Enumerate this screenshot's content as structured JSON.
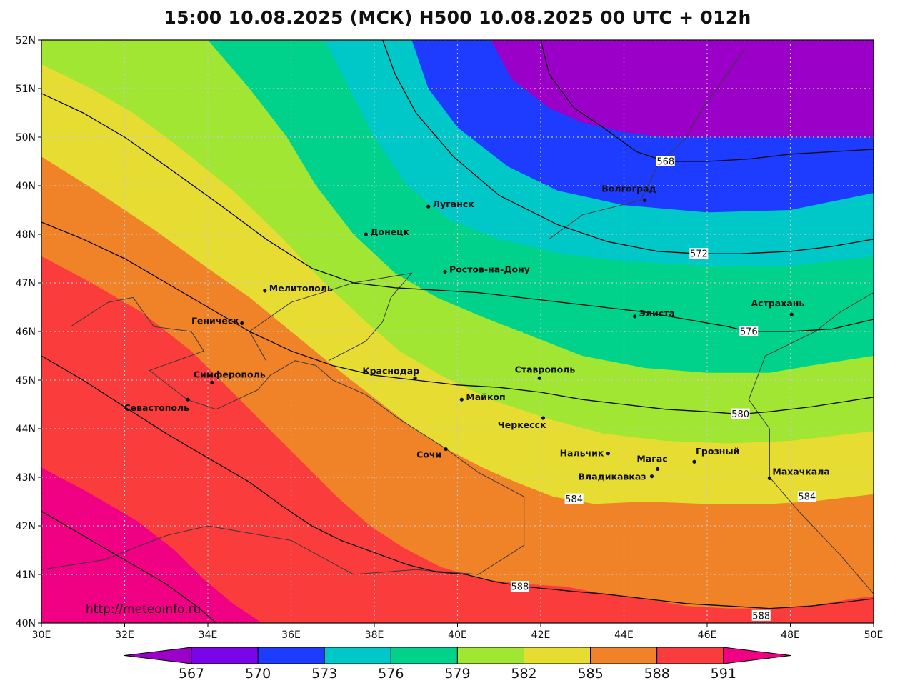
{
  "title": "15:00 10.08.2025 (МСК) H500  10.08.2025 00 UTC + 012h",
  "credit": "http://meteoinfo.ru",
  "map": {
    "lon_range": [
      30,
      50
    ],
    "lat_range": [
      40,
      52
    ],
    "grid": true,
    "x_ticks": [
      "30E",
      "32E",
      "34E",
      "36E",
      "38E",
      "40E",
      "42E",
      "44E",
      "46E",
      "48E",
      "50E"
    ],
    "y_ticks": [
      "40N",
      "41N",
      "42N",
      "43N",
      "44N",
      "45N",
      "46N",
      "47N",
      "48N",
      "49N",
      "50N",
      "51N",
      "52N"
    ]
  },
  "colors": {
    "background": "#ffffff",
    "lt567": "#9b00c8",
    "b567_570": "#7a05e8",
    "b570_573": "#1e3cff",
    "b573_576": "#00c8c8",
    "b576_579": "#00d28c",
    "b579_582": "#a0e632",
    "b582_585": "#e6dc32",
    "b585_588": "#f08228",
    "b588_591": "#fa3c3c",
    "gt591": "#f00082"
  },
  "bands": [
    {
      "name": "lt567",
      "boundary_latlon": [
        [
          52.0,
          40.8
        ],
        [
          51.2,
          41.3
        ],
        [
          50.6,
          42.2
        ],
        [
          50.3,
          43.0
        ],
        [
          50.1,
          44.0
        ],
        [
          50.0,
          45.0
        ]
      ]
    },
    {
      "name": "b567_570",
      "boundary_latlon": [
        [
          52.0,
          44.2
        ],
        [
          51.5,
          44.6
        ],
        [
          51.0,
          45.6
        ],
        [
          50.6,
          47.5
        ],
        [
          50.45,
          50.0
        ]
      ]
    },
    {
      "name": "b570_573",
      "boundary_latlon": [
        [
          52.0,
          38.9
        ],
        [
          51.0,
          39.3
        ],
        [
          50.2,
          40.0
        ],
        [
          49.4,
          41.2
        ],
        [
          48.9,
          42.4
        ],
        [
          48.6,
          44.0
        ],
        [
          48.45,
          46.0
        ],
        [
          48.5,
          48.0
        ],
        [
          48.85,
          50.0
        ]
      ]
    },
    {
      "name": "b573_576",
      "boundary_latlon": [
        [
          52.0,
          36.8
        ],
        [
          51.0,
          37.4
        ],
        [
          50.0,
          38.0
        ],
        [
          49.0,
          38.8
        ],
        [
          48.3,
          39.8
        ],
        [
          47.9,
          41.0
        ],
        [
          47.6,
          42.5
        ],
        [
          47.45,
          44.0
        ],
        [
          47.35,
          46.0
        ],
        [
          47.35,
          48.0
        ],
        [
          47.55,
          50.0
        ]
      ]
    },
    {
      "name": "b576_579",
      "boundary_latlon": [
        [
          52.0,
          34.0
        ],
        [
          51.0,
          35.0
        ],
        [
          50.0,
          35.9
        ],
        [
          49.0,
          36.6
        ],
        [
          48.0,
          37.5
        ],
        [
          47.2,
          38.5
        ],
        [
          46.7,
          39.5
        ],
        [
          46.3,
          40.6
        ],
        [
          45.9,
          41.8
        ],
        [
          45.5,
          43.0
        ],
        [
          45.25,
          44.5
        ],
        [
          45.15,
          46.0
        ],
        [
          45.15,
          47.5
        ],
        [
          45.3,
          48.5
        ],
        [
          45.5,
          50.0
        ]
      ]
    },
    {
      "name": "b579_582",
      "boundary_latlon": [
        [
          51.5,
          30.0
        ],
        [
          51.0,
          31.2
        ],
        [
          50.5,
          32.2
        ],
        [
          49.8,
          33.3
        ],
        [
          48.9,
          34.6
        ],
        [
          48.0,
          35.7
        ],
        [
          47.0,
          36.8
        ],
        [
          46.2,
          37.8
        ],
        [
          45.6,
          38.6
        ],
        [
          45.1,
          39.6
        ],
        [
          44.6,
          40.8
        ],
        [
          44.2,
          42.2
        ],
        [
          43.9,
          43.5
        ],
        [
          43.75,
          45.0
        ],
        [
          43.7,
          46.5
        ],
        [
          43.75,
          48.0
        ],
        [
          43.95,
          50.0
        ]
      ]
    },
    {
      "name": "b582_585",
      "boundary_latlon": [
        [
          49.6,
          30.0
        ],
        [
          48.9,
          31.3
        ],
        [
          48.1,
          32.7
        ],
        [
          47.3,
          34.0
        ],
        [
          46.7,
          35.0
        ],
        [
          46.0,
          36.0
        ],
        [
          45.3,
          37.0
        ],
        [
          44.7,
          37.9
        ],
        [
          44.1,
          38.8
        ],
        [
          43.6,
          39.7
        ],
        [
          43.2,
          40.6
        ],
        [
          42.9,
          41.4
        ],
        [
          42.6,
          42.3
        ],
        [
          42.45,
          43.3
        ],
        [
          42.5,
          44.5
        ],
        [
          42.45,
          46.0
        ],
        [
          42.45,
          47.5
        ],
        [
          42.5,
          48.5
        ],
        [
          42.65,
          50.0
        ]
      ]
    },
    {
      "name": "b585_588",
      "boundary_latlon": [
        [
          47.55,
          30.0
        ],
        [
          47.0,
          31.2
        ],
        [
          46.4,
          32.4
        ],
        [
          45.6,
          33.6
        ],
        [
          45.0,
          34.3
        ],
        [
          44.4,
          35.0
        ],
        [
          43.8,
          35.7
        ],
        [
          43.2,
          36.4
        ],
        [
          42.6,
          37.1
        ],
        [
          42.0,
          37.9
        ],
        [
          41.55,
          38.7
        ],
        [
          41.15,
          39.6
        ],
        [
          40.9,
          40.6
        ],
        [
          40.8,
          41.6
        ],
        [
          40.75,
          42.6
        ],
        [
          40.6,
          43.5
        ],
        [
          40.5,
          44.5
        ],
        [
          40.35,
          45.5
        ],
        [
          40.3,
          46.5
        ],
        [
          40.3,
          47.5
        ],
        [
          40.35,
          48.5
        ],
        [
          40.5,
          49.5
        ],
        [
          40.55,
          50.0
        ]
      ]
    },
    {
      "name": "b588_591",
      "boundary_latlon": [
        [
          43.2,
          30.0
        ],
        [
          42.7,
          31.1
        ],
        [
          42.1,
          32.3
        ],
        [
          41.5,
          33.2
        ],
        [
          40.9,
          33.9
        ],
        [
          40.4,
          34.6
        ],
        [
          40.0,
          35.3
        ]
      ]
    }
  ],
  "contours": [
    {
      "value": "568",
      "label": "568",
      "label_latlon": [
        49.5,
        45.0
      ],
      "path_latlon": [
        [
          52.0,
          42.0
        ],
        [
          51.3,
          42.2
        ],
        [
          50.6,
          42.8
        ],
        [
          50.2,
          43.5
        ],
        [
          49.7,
          44.3
        ],
        [
          49.5,
          45.0
        ],
        [
          49.5,
          46.0
        ],
        [
          49.55,
          47.0
        ],
        [
          49.65,
          48.0
        ],
        [
          49.75,
          50.0
        ]
      ]
    },
    {
      "value": "572",
      "label": "572",
      "label_latlon": [
        47.6,
        45.8
      ],
      "path_latlon": [
        [
          52.0,
          38.2
        ],
        [
          51.3,
          38.5
        ],
        [
          50.5,
          39.0
        ],
        [
          49.6,
          39.9
        ],
        [
          48.8,
          41.0
        ],
        [
          48.2,
          42.4
        ],
        [
          47.85,
          43.6
        ],
        [
          47.65,
          44.8
        ],
        [
          47.6,
          45.8
        ],
        [
          47.6,
          46.8
        ],
        [
          47.65,
          48.0
        ],
        [
          47.75,
          49.0
        ],
        [
          47.9,
          50.0
        ]
      ]
    },
    {
      "value": "576",
      "label": "576",
      "label_latlon": [
        46.0,
        47.0
      ],
      "path_latlon": [
        [
          50.9,
          30.0
        ],
        [
          50.5,
          31.0
        ],
        [
          50.0,
          32.0
        ],
        [
          49.4,
          33.0
        ],
        [
          48.6,
          34.3
        ],
        [
          47.9,
          35.4
        ],
        [
          47.3,
          36.5
        ],
        [
          47.0,
          37.5
        ],
        [
          46.9,
          38.5
        ],
        [
          46.85,
          39.5
        ],
        [
          46.8,
          40.5
        ],
        [
          46.7,
          41.5
        ],
        [
          46.6,
          42.5
        ],
        [
          46.5,
          43.5
        ],
        [
          46.4,
          44.5
        ],
        [
          46.25,
          45.5
        ],
        [
          46.1,
          46.5
        ],
        [
          46.0,
          47.0
        ],
        [
          46.0,
          48.0
        ],
        [
          46.05,
          49.0
        ],
        [
          46.25,
          50.0
        ]
      ]
    },
    {
      "value": "580",
      "label": "580",
      "label_latlon": [
        44.3,
        46.8
      ],
      "path_latlon": [
        [
          48.25,
          30.0
        ],
        [
          47.9,
          31.0
        ],
        [
          47.5,
          32.0
        ],
        [
          47.0,
          33.0
        ],
        [
          46.5,
          34.0
        ],
        [
          46.0,
          35.0
        ],
        [
          45.6,
          36.0
        ],
        [
          45.3,
          37.0
        ],
        [
          45.1,
          38.0
        ],
        [
          45.0,
          39.0
        ],
        [
          44.9,
          40.0
        ],
        [
          44.85,
          41.0
        ],
        [
          44.75,
          42.0
        ],
        [
          44.6,
          43.0
        ],
        [
          44.5,
          44.0
        ],
        [
          44.4,
          45.0
        ],
        [
          44.35,
          46.0
        ],
        [
          44.3,
          46.8
        ],
        [
          44.35,
          47.5
        ],
        [
          44.45,
          48.5
        ],
        [
          44.65,
          50.0
        ]
      ]
    },
    {
      "value": "584",
      "label": "584",
      "label_latlon": [
        42.55,
        42.8
      ],
      "label2": "584",
      "label2_latlon": [
        42.6,
        48.4
      ],
      "path_latlon": [
        [
          45.5,
          30.0
        ],
        [
          45.0,
          31.0
        ],
        [
          44.45,
          32.0
        ],
        [
          43.9,
          33.0
        ],
        [
          43.4,
          34.0
        ],
        [
          42.9,
          35.0
        ],
        [
          42.4,
          35.8
        ],
        [
          42.0,
          36.5
        ],
        [
          41.7,
          37.2
        ],
        [
          41.45,
          38.0
        ],
        [
          41.2,
          38.8
        ],
        [
          41.05,
          39.5
        ],
        [
          41.0,
          40.2
        ],
        [
          40.85,
          40.9
        ],
        [
          40.75,
          41.6
        ],
        [
          40.7,
          42.2
        ],
        [
          40.65,
          42.8
        ],
        [
          40.6,
          43.5
        ],
        [
          40.5,
          44.5
        ],
        [
          40.4,
          45.5
        ],
        [
          40.35,
          46.5
        ],
        [
          40.3,
          47.5
        ],
        [
          40.35,
          48.5
        ],
        [
          40.45,
          49.5
        ],
        [
          40.5,
          50.0
        ]
      ]
    },
    {
      "value": "588",
      "label": "588",
      "label_latlon": [
        40.75,
        41.5
      ],
      "label2": "588",
      "label2_latlon": [
        40.15,
        47.3
      ],
      "path_latlon": [
        [
          42.3,
          30.0
        ],
        [
          41.8,
          31.0
        ],
        [
          41.3,
          32.0
        ],
        [
          40.8,
          33.0
        ],
        [
          40.3,
          33.8
        ],
        [
          40.0,
          34.2
        ]
      ]
    }
  ],
  "cities": [
    {
      "name": "Волгоград",
      "latlon": [
        48.7,
        44.5
      ]
    },
    {
      "name": "Луганск",
      "latlon": [
        48.57,
        39.3
      ]
    },
    {
      "name": "Донецк",
      "latlon": [
        48.0,
        37.8
      ]
    },
    {
      "name": "Ростов-на-Дону",
      "latlon": [
        47.23,
        39.7
      ]
    },
    {
      "name": "Мелитополь",
      "latlon": [
        46.84,
        35.37
      ]
    },
    {
      "name": "Геническ",
      "latlon": [
        46.17,
        34.82
      ]
    },
    {
      "name": "Элиста",
      "latlon": [
        46.31,
        44.26
      ]
    },
    {
      "name": "Астрахань",
      "latlon": [
        46.35,
        48.03
      ]
    },
    {
      "name": "Симферополь",
      "latlon": [
        44.95,
        34.1
      ]
    },
    {
      "name": "Севастополь",
      "latlon": [
        44.6,
        33.52
      ]
    },
    {
      "name": "Краснодар",
      "latlon": [
        45.04,
        38.98
      ]
    },
    {
      "name": "Ставрополь",
      "latlon": [
        45.04,
        41.97
      ]
    },
    {
      "name": "Майкоп",
      "latlon": [
        44.6,
        40.1
      ]
    },
    {
      "name": "Черкесск",
      "latlon": [
        44.22,
        42.06
      ]
    },
    {
      "name": "Сочи",
      "latlon": [
        43.58,
        39.72
      ]
    },
    {
      "name": "Нальчик",
      "latlon": [
        43.49,
        43.62
      ]
    },
    {
      "name": "Магас",
      "latlon": [
        43.17,
        44.81
      ]
    },
    {
      "name": "Грозный",
      "latlon": [
        43.32,
        45.69
      ]
    },
    {
      "name": "Владикавказ",
      "latlon": [
        43.02,
        44.67
      ]
    },
    {
      "name": "Махачкала",
      "latlon": [
        42.98,
        47.5
      ]
    }
  ],
  "coastline": {
    "black_sea_azov": [
      [
        46.1,
        30.7
      ],
      [
        46.6,
        31.6
      ],
      [
        46.7,
        32.2
      ],
      [
        46.1,
        32.7
      ],
      [
        46.0,
        33.6
      ],
      [
        45.6,
        33.9
      ],
      [
        45.2,
        32.6
      ],
      [
        44.6,
        33.5
      ],
      [
        44.4,
        34.2
      ],
      [
        44.8,
        35.2
      ],
      [
        45.1,
        35.5
      ],
      [
        45.4,
        36.1
      ],
      [
        45.3,
        36.6
      ],
      [
        45.0,
        37.0
      ],
      [
        44.7,
        37.8
      ],
      [
        44.2,
        38.6
      ],
      [
        43.6,
        39.7
      ],
      [
        43.1,
        40.5
      ],
      [
        42.6,
        41.6
      ],
      [
        41.6,
        41.6
      ],
      [
        41.0,
        40.5
      ],
      [
        41.1,
        39.0
      ],
      [
        41.0,
        37.5
      ],
      [
        41.7,
        36.0
      ],
      [
        42.0,
        34.0
      ],
      [
        41.8,
        33.0
      ],
      [
        41.3,
        31.5
      ],
      [
        41.1,
        30.0
      ]
    ],
    "azov_north": [
      [
        45.4,
        35.4
      ],
      [
        46.0,
        35.0
      ],
      [
        46.6,
        36.0
      ],
      [
        47.0,
        37.5
      ],
      [
        47.2,
        38.9
      ],
      [
        46.7,
        38.4
      ],
      [
        46.2,
        38.2
      ],
      [
        45.8,
        37.8
      ],
      [
        45.4,
        36.9
      ]
    ],
    "caspian_west": [
      [
        46.8,
        50.0
      ],
      [
        46.4,
        49.2
      ],
      [
        46.0,
        48.6
      ],
      [
        45.5,
        47.4
      ],
      [
        44.6,
        47.0
      ],
      [
        44.0,
        47.5
      ],
      [
        43.0,
        47.5
      ],
      [
        42.3,
        48.2
      ],
      [
        41.4,
        49.2
      ],
      [
        40.6,
        50.0
      ]
    ],
    "volga": [
      [
        51.8,
        46.9
      ],
      [
        51.2,
        46.4
      ],
      [
        50.6,
        45.9
      ],
      [
        50.0,
        45.5
      ],
      [
        49.4,
        44.8
      ],
      [
        48.7,
        44.4
      ],
      [
        48.4,
        43.0
      ],
      [
        47.9,
        42.2
      ]
    ]
  },
  "colorbar": {
    "labels": [
      "567",
      "570",
      "573",
      "576",
      "579",
      "582",
      "585",
      "588",
      "591"
    ],
    "band_colors": [
      "#9b00c8",
      "#7a05e8",
      "#1e3cff",
      "#00c8c8",
      "#00d28c",
      "#a0e632",
      "#e6dc32",
      "#f08228",
      "#fa3c3c",
      "#f00082"
    ]
  }
}
